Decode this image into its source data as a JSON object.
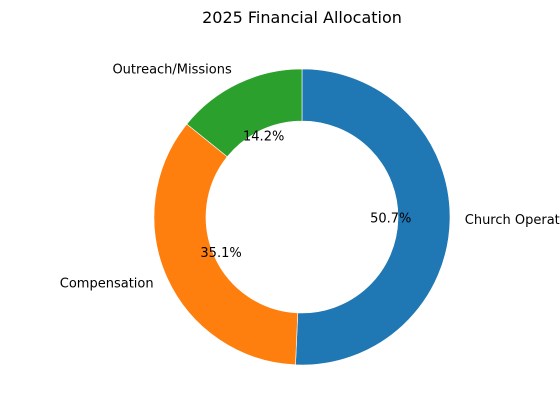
{
  "chart_data": {
    "type": "pie",
    "variant": "donut",
    "title": "2025 Financial Allocation",
    "slices": [
      {
        "label": "Church Operations",
        "value": 50.7,
        "pct_label": "50.7%",
        "color": "#1f77b4"
      },
      {
        "label": "Compensation",
        "value": 35.1,
        "pct_label": "35.1%",
        "color": "#ff7f0e"
      },
      {
        "label": "Outreach/Missions",
        "value": 14.2,
        "pct_label": "14.2%",
        "color": "#2ca02c"
      }
    ],
    "start_angle_deg": 90,
    "direction": "clockwise",
    "legend": "none"
  }
}
